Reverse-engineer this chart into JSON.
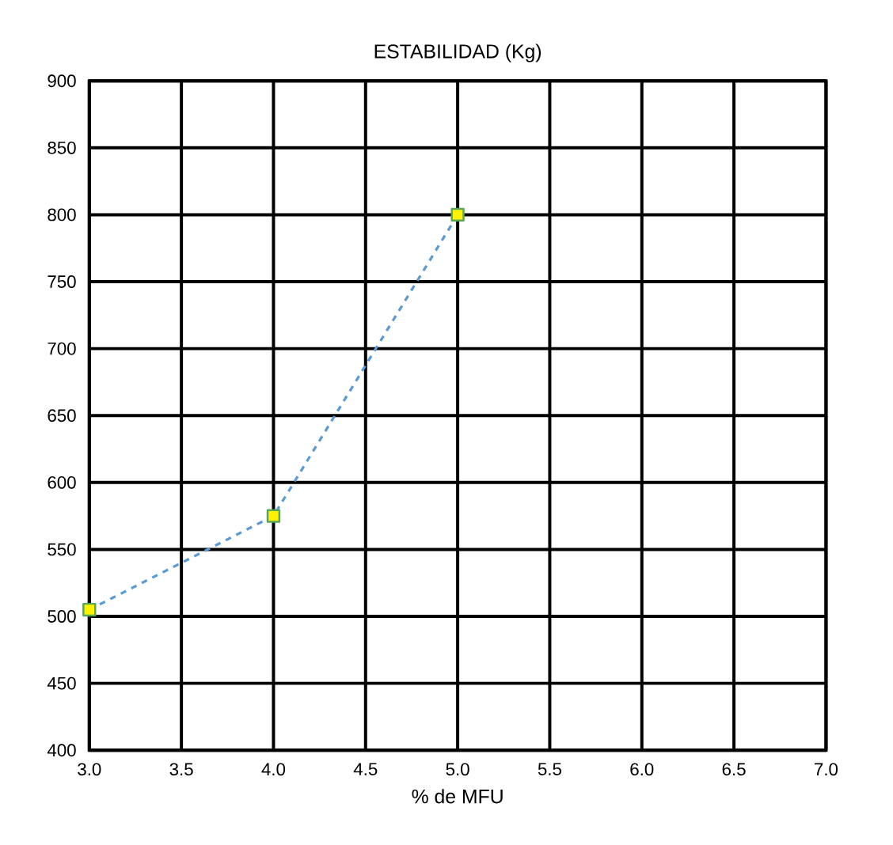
{
  "chart_data": {
    "type": "line",
    "title": "ESTABILIDAD (Kg)",
    "xlabel": "% de MFU",
    "x": [
      3.0,
      4.0,
      5.0
    ],
    "series": [
      {
        "color": "#5b9bd5",
        "values": [
          505,
          575,
          800
        ]
      }
    ],
    "xlim": [
      3.0,
      7.0
    ],
    "xticks": [
      {
        "value": 3.0,
        "label": "3.0"
      },
      {
        "value": 3.5,
        "label": "3.5"
      },
      {
        "value": 4.0,
        "label": "4.0"
      },
      {
        "value": 4.5,
        "label": "4.5"
      },
      {
        "value": 5.0,
        "label": "5.0"
      },
      {
        "value": 5.5,
        "label": "5.5"
      },
      {
        "value": 6.0,
        "label": "6.0"
      },
      {
        "value": 6.5,
        "label": "6.5"
      },
      {
        "value": 7.0,
        "label": "7.0"
      }
    ],
    "ylim": [
      400,
      900
    ],
    "yticks": [
      400,
      450,
      500,
      550,
      600,
      650,
      700,
      750,
      800,
      850,
      900
    ],
    "grid": true,
    "marker": "square",
    "line_style": "dashed"
  }
}
